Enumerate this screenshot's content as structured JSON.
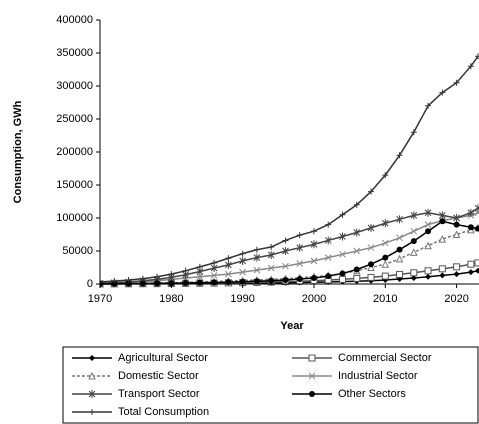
{
  "chart_data": {
    "type": "line",
    "ylabel": "Consumption, GWh",
    "xlabel": "Year",
    "x": [
      1970,
      1972,
      1974,
      1976,
      1978,
      1980,
      1982,
      1984,
      1986,
      1988,
      1990,
      1992,
      1994,
      1996,
      1998,
      2000,
      2002,
      2004,
      2006,
      2008,
      2010,
      2012,
      2014,
      2016,
      2018,
      2020,
      2022,
      2023
    ],
    "xlim": [
      1970,
      2023
    ],
    "xticks": [
      1970,
      1980,
      1990,
      2000,
      2010,
      2020
    ],
    "ylim": [
      0,
      400000
    ],
    "yticks": [
      0,
      50000,
      100000,
      150000,
      200000,
      250000,
      300000,
      350000,
      400000
    ],
    "series": [
      {
        "name": "Agricultural Sector",
        "color": "#000000",
        "marker": "diamond",
        "dashed": false,
        "values": [
          50,
          80,
          120,
          160,
          200,
          300,
          400,
          500,
          600,
          800,
          1000,
          1200,
          1500,
          1800,
          2200,
          2600,
          3000,
          3600,
          4200,
          5000,
          6000,
          7500,
          9000,
          11000,
          13000,
          15000,
          18000,
          20000
        ]
      },
      {
        "name": "Commercial Sector",
        "color": "#555555",
        "marker": "square",
        "dashed": false,
        "values": [
          100,
          200,
          300,
          400,
          500,
          700,
          900,
          1100,
          1400,
          1700,
          2000,
          2500,
          3000,
          3600,
          4200,
          5000,
          6000,
          7000,
          8500,
          10000,
          12000,
          14500,
          17000,
          20000,
          23000,
          26000,
          30000,
          32000
        ]
      },
      {
        "name": "Domestic Sector",
        "color": "#777777",
        "marker": "triangle",
        "dashed": true,
        "values": [
          300,
          500,
          800,
          1200,
          1600,
          2000,
          2600,
          3200,
          3800,
          4500,
          5200,
          6000,
          7000,
          8000,
          9500,
          11000,
          13000,
          16000,
          20000,
          25000,
          30000,
          38000,
          48000,
          58000,
          68000,
          75000,
          82000,
          85000
        ]
      },
      {
        "name": "Industrial Sector",
        "color": "#888888",
        "marker": "x",
        "dashed": false,
        "values": [
          800,
          1500,
          2500,
          3500,
          5000,
          7000,
          9000,
          11000,
          13000,
          15000,
          18000,
          21000,
          24000,
          27000,
          31000,
          35000,
          40000,
          45000,
          50000,
          55000,
          62000,
          70000,
          80000,
          90000,
          96000,
          100000,
          104000,
          108000
        ]
      },
      {
        "name": "Transport Sector",
        "color": "#444444",
        "marker": "star",
        "dashed": false,
        "values": [
          1000,
          2000,
          3000,
          5000,
          7000,
          10000,
          14000,
          19000,
          24000,
          29000,
          35000,
          40000,
          44000,
          50000,
          55000,
          60000,
          66000,
          72000,
          78000,
          85000,
          92000,
          98000,
          104000,
          108000,
          104000,
          100000,
          108000,
          115000
        ]
      },
      {
        "name": "Other Sectors",
        "color": "#000000",
        "marker": "circle",
        "dashed": false,
        "values": [
          200,
          300,
          500,
          700,
          900,
          1200,
          1500,
          1900,
          2300,
          2800,
          3400,
          4200,
          5000,
          6000,
          7500,
          9000,
          12000,
          16000,
          22000,
          30000,
          40000,
          52000,
          65000,
          80000,
          95000,
          90000,
          86000,
          84000
        ]
      },
      {
        "name": "Total Consumption",
        "color": "#333333",
        "marker": "plus",
        "dashed": false,
        "values": [
          3000,
          4500,
          6000,
          8000,
          11000,
          15000,
          20000,
          26000,
          32000,
          39000,
          46000,
          52000,
          56000,
          66000,
          74000,
          80000,
          90000,
          105000,
          120000,
          140000,
          165000,
          195000,
          230000,
          270000,
          290000,
          305000,
          330000,
          345000
        ]
      }
    ]
  }
}
